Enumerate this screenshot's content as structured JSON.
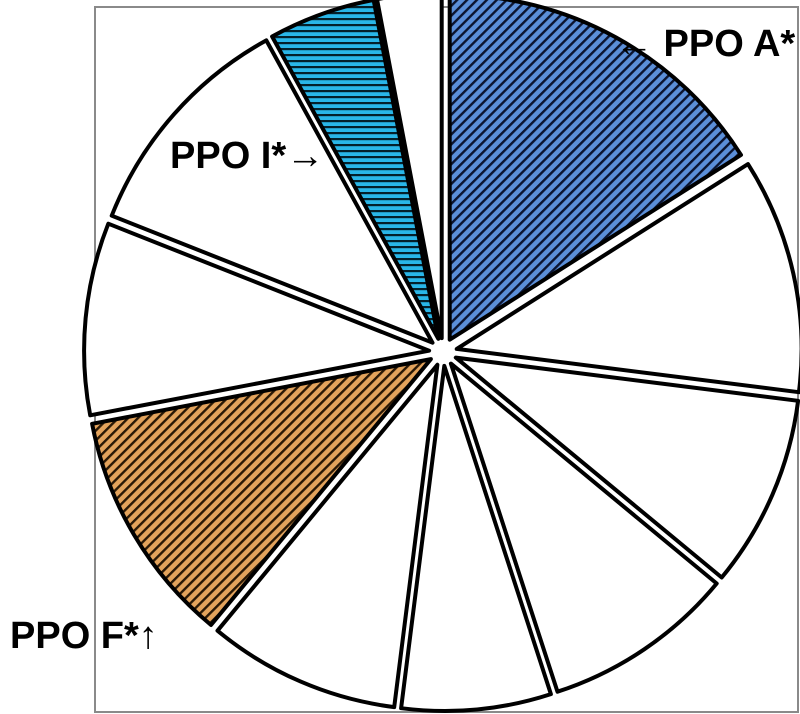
{
  "chart_data": {
    "type": "pie",
    "slices": [
      {
        "label": "PPO A*",
        "value": 16,
        "fill": "#5b8fd9",
        "pattern": "diagonal-stripes",
        "shown_label": "← PPO A*"
      },
      {
        "label": "",
        "value": 11,
        "fill": "#ffffff",
        "pattern": "none"
      },
      {
        "label": "",
        "value": 9,
        "fill": "#ffffff",
        "pattern": "none"
      },
      {
        "label": "",
        "value": 9,
        "fill": "#ffffff",
        "pattern": "none"
      },
      {
        "label": "",
        "value": 7,
        "fill": "#ffffff",
        "pattern": "none"
      },
      {
        "label": "",
        "value": 9,
        "fill": "#ffffff",
        "pattern": "none"
      },
      {
        "label": "PPO F*",
        "value": 11,
        "fill": "#e3a35c",
        "pattern": "diagonal-stripes",
        "shown_label": "PPO F*↑"
      },
      {
        "label": "",
        "value": 9,
        "fill": "#ffffff",
        "pattern": "none"
      },
      {
        "label": "",
        "value": 11,
        "fill": "#ffffff",
        "pattern": "none"
      },
      {
        "label": "PPO I*",
        "value": 5,
        "fill": "#29b6e8",
        "pattern": "horizontal-stripes",
        "shown_label": "PPO I*→"
      },
      {
        "label": "",
        "value": 3,
        "fill": "#ffffff",
        "pattern": "none"
      }
    ],
    "start": "12 o'clock",
    "direction": "clockwise",
    "exploded": true,
    "labels": [
      "← PPO A*",
      "PPO I*→",
      "PPO F*↑"
    ]
  }
}
